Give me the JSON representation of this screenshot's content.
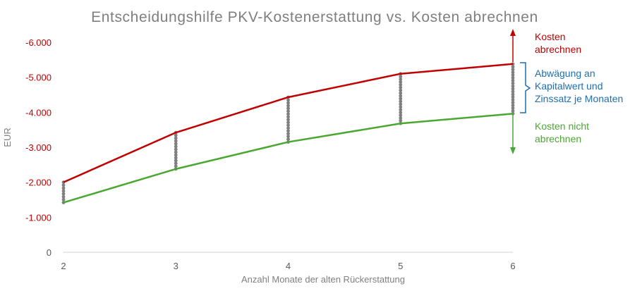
{
  "chart_data": {
    "type": "line",
    "title": "Entscheidungshilfe PKV-Kostenerstattung vs. Kosten abrechnen",
    "xlabel": "Anzahl Monate der alten Rückerstattung",
    "ylabel": "EUR",
    "x": [
      2,
      3,
      4,
      5,
      6
    ],
    "x_tick_labels": [
      "2",
      "3",
      "4",
      "5",
      "6"
    ],
    "ylim": [
      0,
      -6000
    ],
    "y_ticks": [
      0,
      -1000,
      -2000,
      -3000,
      -4000,
      -5000,
      -6000
    ],
    "y_tick_labels": [
      "0",
      "-1.000",
      "-2.000",
      "-3.000",
      "-4.000",
      "-5.000",
      "-6.000"
    ],
    "series": [
      {
        "key": "upper",
        "color": "#c00000",
        "values": [
          -2000,
          -3420,
          -4430,
          -5100,
          -5380
        ]
      },
      {
        "key": "lower",
        "color": "#4aa832",
        "values": [
          -1420,
          -2380,
          -3150,
          -3680,
          -3960
        ]
      }
    ],
    "dotted_spread_color": "#7f7f7f",
    "y_tick_color": "#c00000",
    "zero_tick_color": "#595959",
    "annotations": {
      "costs_claim": {
        "lines": [
          "Kosten",
          "abrechnen"
        ],
        "color": "#c00000"
      },
      "tradeoff": {
        "lines": [
          "Abwägung an",
          "Kapitalwert und",
          "Zinssatz je Monaten"
        ],
        "color": "#1f6fb0"
      },
      "costs_no_claim": {
        "lines": [
          "Kosten nicht",
          "abrechnen"
        ],
        "color": "#4aa832"
      }
    }
  }
}
